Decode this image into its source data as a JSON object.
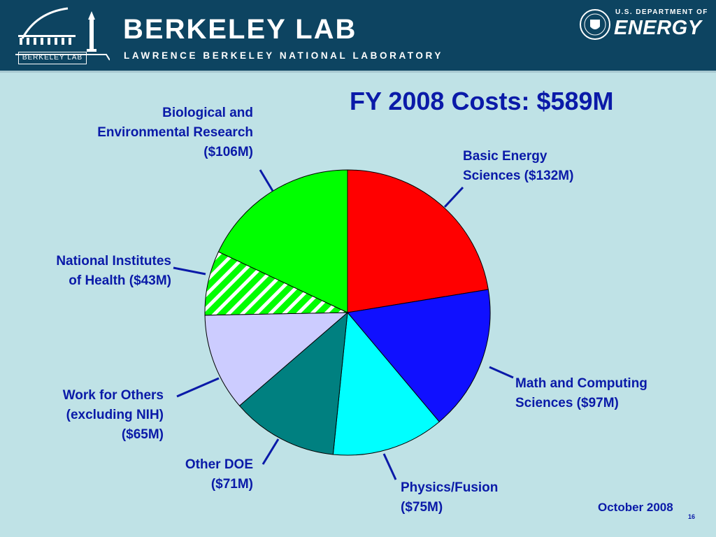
{
  "header": {
    "org_name": "BERKELEY LAB",
    "org_subtitle": "LAWRENCE BERKELEY NATIONAL LABORATORY",
    "logo_badge": "BERKELEY LAB",
    "doe_top": "U.S. DEPARTMENT OF",
    "doe_main": "ENERGY"
  },
  "colors": {
    "header_bg": "#0d4461",
    "page_bg": "#bfe2e6",
    "text": "#0a1aa8"
  },
  "chart_data": {
    "type": "pie",
    "title": "FY 2008 Costs: $589M",
    "unit": "$M",
    "slices": [
      {
        "label_lines": [
          "Basic Energy",
          "Sciences ($132M)"
        ],
        "value": 132,
        "color": "#ff0000",
        "pattern": "none"
      },
      {
        "label_lines": [
          "Math and Computing",
          "Sciences ($97M)"
        ],
        "value": 97,
        "color": "#1010ff",
        "pattern": "none"
      },
      {
        "label_lines": [
          "Physics/Fusion",
          "($75M)"
        ],
        "value": 75,
        "color": "#00ffff",
        "pattern": "none"
      },
      {
        "label_lines": [
          "Other DOE",
          "($71M)"
        ],
        "value": 71,
        "color": "#008080",
        "pattern": "none"
      },
      {
        "label_lines": [
          "Work for Others",
          "(excluding NIH)",
          "($65M)"
        ],
        "value": 65,
        "color": "#ccccff",
        "pattern": "none"
      },
      {
        "label_lines": [
          "National Institutes",
          "of Health ($43M)"
        ],
        "value": 43,
        "color": "#00ff00",
        "pattern": "diagonal-stripes"
      },
      {
        "label_lines": [
          "Biological and",
          "Environmental Research",
          "($106M)"
        ],
        "value": 106,
        "color": "#00ff00",
        "pattern": "none"
      }
    ]
  },
  "footer": {
    "date": "October 2008",
    "page": "16"
  }
}
